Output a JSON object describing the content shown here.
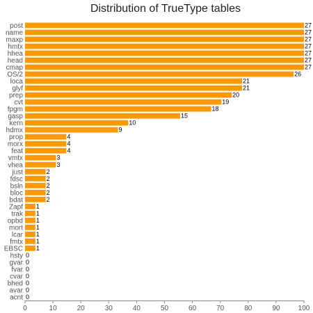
{
  "chart_data": {
    "type": "bar",
    "orientation": "horizontal",
    "title": "Distribution of TrueType tables",
    "xlim": [
      0,
      100
    ],
    "xticks": [
      0,
      10,
      20,
      30,
      40,
      50,
      60,
      70,
      80,
      90,
      100
    ],
    "grid": false,
    "bar_color": "#ff9900",
    "categories": [
      "post",
      "name",
      "maxp",
      "hmtx",
      "hhea",
      "head",
      "cmap",
      "OS/2",
      "loca",
      "glyf",
      "prep",
      "cvt",
      "fpgm",
      "gasp",
      "kern",
      "hdmx",
      "prop",
      "morx",
      "feat",
      "vmtx",
      "vhea",
      "just",
      "fdsc",
      "bsln",
      "bloc",
      "bdat",
      "Zapf",
      "trak",
      "opbd",
      "mort",
      "lcar",
      "fmtx",
      "EBSC",
      "hsty",
      "gvar",
      "fvar",
      "cvar",
      "bhed",
      "avar",
      "acnt"
    ],
    "values": [
      27,
      27,
      27,
      27,
      27,
      27,
      27,
      26,
      21,
      21,
      20,
      19,
      18,
      15,
      10,
      9,
      4,
      4,
      4,
      3,
      3,
      2,
      2,
      2,
      2,
      2,
      1,
      1,
      1,
      1,
      1,
      1,
      1,
      0,
      0,
      0,
      0,
      0,
      0,
      0
    ],
    "value_labels": [
      "27",
      "27",
      "27",
      "27",
      "27",
      "27",
      "27",
      "26",
      "21",
      "21",
      "20",
      "19",
      "18",
      "15",
      "10",
      "9",
      "4",
      "4",
      "4",
      "3",
      "3",
      "2",
      "2",
      "2",
      "2",
      "2",
      "1",
      "1",
      "1",
      "1",
      "1",
      "1",
      "1",
      "0",
      "0",
      "0",
      "0",
      "0",
      "0",
      "0"
    ],
    "bar_lengths_in_axis_units": [
      100,
      100,
      100,
      100,
      100,
      100,
      100,
      96.3,
      77.8,
      77.8,
      74.1,
      70.4,
      66.7,
      55.6,
      37,
      33.3,
      14.8,
      14.8,
      14.8,
      11.1,
      11.1,
      7.4,
      7.4,
      7.4,
      7.4,
      7.4,
      3.7,
      3.7,
      3.7,
      3.7,
      3.7,
      3.7,
      3.7,
      0,
      0,
      0,
      0,
      0,
      0,
      0
    ]
  }
}
